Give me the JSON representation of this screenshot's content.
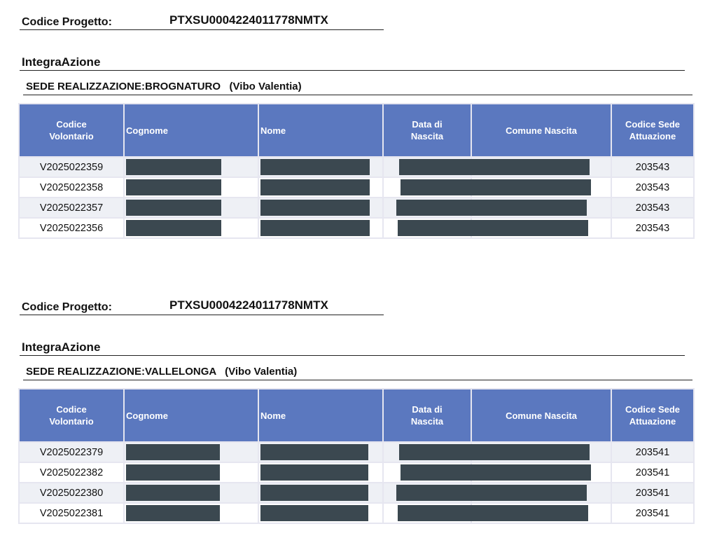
{
  "sections": [
    {
      "codice_label": "Codice Progetto:",
      "codice_value": "PTXSU0004224011778NMTX",
      "project_title": "IntegraAzione",
      "sede_text": "SEDE REALIZZAZIONE:BROGNATURO   (Vibo Valentia)",
      "table": {
        "headers": [
          "Codice Volontario",
          "Cognome",
          "Nome",
          "Data di Nascita",
          "Comune Nascita",
          "Codice Sede Attuazione"
        ],
        "rows": [
          {
            "id": "V2025022359",
            "sede": "203543"
          },
          {
            "id": "V2025022358",
            "sede": "203543"
          },
          {
            "id": "V2025022357",
            "sede": "203543"
          },
          {
            "id": "V2025022356",
            "sede": "203543"
          }
        ]
      }
    },
    {
      "codice_label": "Codice Progetto:",
      "codice_value": "PTXSU0004224011778NMTX",
      "project_title": "IntegraAzione",
      "sede_text": "SEDE REALIZZAZIONE:VALLELONGA   (Vibo Valentia)",
      "table": {
        "headers": [
          "Codice Volontario",
          "Cognome",
          "Nome",
          "Data di Nascita",
          "Comune Nascita",
          "Codice Sede Attuazione"
        ],
        "rows": [
          {
            "id": "V2025022379",
            "sede": "203541"
          },
          {
            "id": "V2025022382",
            "sede": "203541"
          },
          {
            "id": "V2025022380",
            "sede": "203541"
          },
          {
            "id": "V2025022381",
            "sede": "203541"
          }
        ]
      }
    }
  ]
}
